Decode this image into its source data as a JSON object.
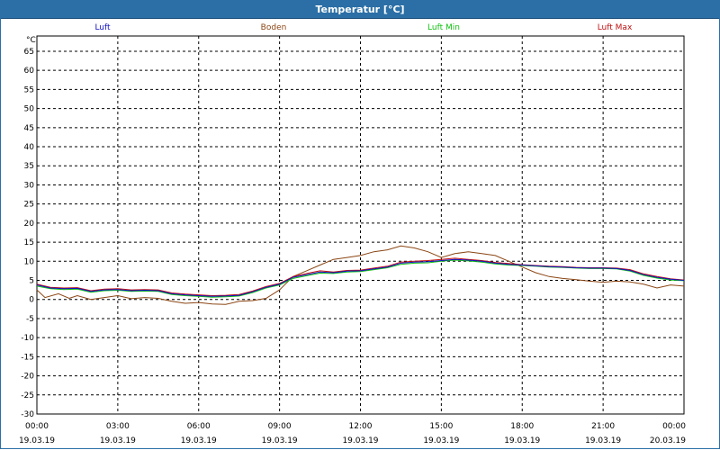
{
  "window": {
    "title": "Temperatur [°C]"
  },
  "chart_data": {
    "type": "line",
    "title": "Temperatur [°C]",
    "ylabel": "°C",
    "ylim": [
      -30,
      69
    ],
    "yticks": [
      65,
      60,
      55,
      50,
      45,
      40,
      35,
      30,
      25,
      20,
      15,
      10,
      5,
      0,
      -5,
      -10,
      -15,
      -20,
      -25,
      -30
    ],
    "xlim_hours": [
      0,
      24
    ],
    "xticks": [
      {
        "hour": 0,
        "time": "00:00",
        "date": "19.03.19"
      },
      {
        "hour": 3,
        "time": "03:00",
        "date": "19.03.19"
      },
      {
        "hour": 6,
        "time": "06:00",
        "date": "19.03.19"
      },
      {
        "hour": 9,
        "time": "09:00",
        "date": "19.03.19"
      },
      {
        "hour": 12,
        "time": "12:00",
        "date": "19.03.19"
      },
      {
        "hour": 15,
        "time": "15:00",
        "date": "19.03.19"
      },
      {
        "hour": 18,
        "time": "18:00",
        "date": "19.03.19"
      },
      {
        "hour": 21,
        "time": "21:00",
        "date": "19.03.19"
      },
      {
        "hour": 24,
        "time": "00:00",
        "date": "20.03.19"
      }
    ],
    "grid": true,
    "legend_position": "top",
    "series": [
      {
        "name": "Luft",
        "color": "#1010c0",
        "points": [
          [
            0,
            3.8
          ],
          [
            0.5,
            3.0
          ],
          [
            1,
            2.8
          ],
          [
            1.5,
            2.9
          ],
          [
            2,
            2.1
          ],
          [
            2.5,
            2.5
          ],
          [
            3,
            2.6
          ],
          [
            3.5,
            2.3
          ],
          [
            4,
            2.4
          ],
          [
            4.5,
            2.3
          ],
          [
            5,
            1.5
          ],
          [
            5.5,
            1.2
          ],
          [
            6,
            1.0
          ],
          [
            6.5,
            0.8
          ],
          [
            7,
            0.9
          ],
          [
            7.5,
            1.1
          ],
          [
            8,
            2.0
          ],
          [
            8.5,
            3.2
          ],
          [
            9,
            4.0
          ],
          [
            9.5,
            5.8
          ],
          [
            10,
            6.5
          ],
          [
            10.5,
            7.2
          ],
          [
            11,
            7.0
          ],
          [
            11.5,
            7.4
          ],
          [
            12,
            7.5
          ],
          [
            12.5,
            8.0
          ],
          [
            13,
            8.5
          ],
          [
            13.5,
            9.5
          ],
          [
            14,
            9.8
          ],
          [
            14.5,
            9.9
          ],
          [
            15,
            10.2
          ],
          [
            15.5,
            10.5
          ],
          [
            16,
            10.3
          ],
          [
            16.5,
            10.0
          ],
          [
            17,
            9.5
          ],
          [
            17.5,
            9.2
          ],
          [
            18,
            9.0
          ],
          [
            18.5,
            8.8
          ],
          [
            19,
            8.6
          ],
          [
            19.5,
            8.5
          ],
          [
            20,
            8.3
          ],
          [
            20.5,
            8.2
          ],
          [
            21,
            8.2
          ],
          [
            21.5,
            8.1
          ],
          [
            22,
            7.6
          ],
          [
            22.5,
            6.5
          ],
          [
            23,
            5.8
          ],
          [
            23.5,
            5.3
          ],
          [
            24,
            5.0
          ]
        ]
      },
      {
        "name": "Boden",
        "color": "#8b4513",
        "points": [
          [
            0,
            2.5
          ],
          [
            0.3,
            0.5
          ],
          [
            0.8,
            1.5
          ],
          [
            1.2,
            0.3
          ],
          [
            1.5,
            1.0
          ],
          [
            2,
            0.0
          ],
          [
            2.5,
            0.5
          ],
          [
            3,
            1.0
          ],
          [
            3.5,
            0.2
          ],
          [
            4,
            0.5
          ],
          [
            4.5,
            0.3
          ],
          [
            5,
            -0.5
          ],
          [
            5.5,
            -1.0
          ],
          [
            6,
            -0.8
          ],
          [
            6.5,
            -1.2
          ],
          [
            7,
            -1.3
          ],
          [
            7.5,
            -0.5
          ],
          [
            8,
            -0.3
          ],
          [
            8.5,
            0.3
          ],
          [
            9,
            2.5
          ],
          [
            9.5,
            6.0
          ],
          [
            10,
            7.5
          ],
          [
            10.5,
            9.0
          ],
          [
            11,
            10.5
          ],
          [
            11.5,
            11.0
          ],
          [
            12,
            11.5
          ],
          [
            12.5,
            12.5
          ],
          [
            13,
            13.0
          ],
          [
            13.5,
            14.0
          ],
          [
            14,
            13.5
          ],
          [
            14.5,
            12.5
          ],
          [
            15,
            11.0
          ],
          [
            15.5,
            12.0
          ],
          [
            16,
            12.5
          ],
          [
            16.5,
            12.0
          ],
          [
            17,
            11.5
          ],
          [
            17.5,
            10.0
          ],
          [
            18,
            8.5
          ],
          [
            18.5,
            7.0
          ],
          [
            19,
            6.0
          ],
          [
            19.5,
            5.5
          ],
          [
            20,
            5.2
          ],
          [
            20.5,
            4.8
          ],
          [
            21,
            4.5
          ],
          [
            21.5,
            4.8
          ],
          [
            22,
            4.6
          ],
          [
            22.5,
            4.0
          ],
          [
            23,
            3.0
          ],
          [
            23.5,
            3.8
          ],
          [
            24,
            3.5
          ]
        ]
      },
      {
        "name": "Luft Min",
        "color": "#10c010",
        "points": [
          [
            0,
            3.5
          ],
          [
            0.5,
            2.8
          ],
          [
            1,
            2.6
          ],
          [
            1.5,
            2.7
          ],
          [
            2,
            1.9
          ],
          [
            2.5,
            2.3
          ],
          [
            3,
            2.4
          ],
          [
            3.5,
            2.1
          ],
          [
            4,
            2.2
          ],
          [
            4.5,
            2.1
          ],
          [
            5,
            1.3
          ],
          [
            5.5,
            1.0
          ],
          [
            6,
            0.8
          ],
          [
            6.5,
            0.6
          ],
          [
            7,
            0.7
          ],
          [
            7.5,
            0.9
          ],
          [
            8,
            1.8
          ],
          [
            8.5,
            3.0
          ],
          [
            9,
            3.8
          ],
          [
            9.5,
            5.5
          ],
          [
            10,
            6.2
          ],
          [
            10.5,
            6.9
          ],
          [
            11,
            6.8
          ],
          [
            11.5,
            7.2
          ],
          [
            12,
            7.3
          ],
          [
            12.5,
            7.8
          ],
          [
            13,
            8.3
          ],
          [
            13.5,
            9.2
          ],
          [
            14,
            9.5
          ],
          [
            14.5,
            9.6
          ],
          [
            15,
            10.0
          ],
          [
            15.5,
            10.3
          ],
          [
            16,
            10.1
          ],
          [
            16.5,
            9.8
          ],
          [
            17,
            9.3
          ],
          [
            17.5,
            9.0
          ],
          [
            18,
            8.9
          ],
          [
            18.5,
            8.7
          ],
          [
            19,
            8.5
          ],
          [
            19.5,
            8.4
          ],
          [
            20,
            8.2
          ],
          [
            20.5,
            8.1
          ],
          [
            21,
            8.1
          ],
          [
            21.5,
            8.0
          ],
          [
            22,
            7.4
          ],
          [
            22.5,
            6.3
          ],
          [
            23,
            5.6
          ],
          [
            23.5,
            5.1
          ],
          [
            24,
            4.9
          ]
        ]
      },
      {
        "name": "Luft Max",
        "color": "#c01010",
        "points": [
          [
            0,
            4.0
          ],
          [
            0.5,
            3.2
          ],
          [
            1,
            3.0
          ],
          [
            1.5,
            3.1
          ],
          [
            2,
            2.3
          ],
          [
            2.5,
            2.7
          ],
          [
            3,
            2.8
          ],
          [
            3.5,
            2.5
          ],
          [
            4,
            2.6
          ],
          [
            4.5,
            2.5
          ],
          [
            5,
            1.7
          ],
          [
            5.5,
            1.4
          ],
          [
            6,
            1.2
          ],
          [
            6.5,
            1.0
          ],
          [
            7,
            1.1
          ],
          [
            7.5,
            1.3
          ],
          [
            8,
            2.2
          ],
          [
            8.5,
            3.4
          ],
          [
            9,
            4.2
          ],
          [
            9.5,
            6.0
          ],
          [
            10,
            6.8
          ],
          [
            10.5,
            7.5
          ],
          [
            11,
            7.2
          ],
          [
            11.5,
            7.6
          ],
          [
            12,
            7.7
          ],
          [
            12.5,
            8.2
          ],
          [
            13,
            8.7
          ],
          [
            13.5,
            9.8
          ],
          [
            14,
            10.0
          ],
          [
            14.5,
            10.2
          ],
          [
            15,
            10.5
          ],
          [
            15.5,
            10.8
          ],
          [
            16,
            10.5
          ],
          [
            16.5,
            10.2
          ],
          [
            17,
            9.7
          ],
          [
            17.5,
            9.4
          ],
          [
            18,
            9.1
          ],
          [
            18.5,
            8.9
          ],
          [
            19,
            8.7
          ],
          [
            19.5,
            8.6
          ],
          [
            20,
            8.4
          ],
          [
            20.5,
            8.3
          ],
          [
            21,
            8.3
          ],
          [
            21.5,
            8.2
          ],
          [
            22,
            7.8
          ],
          [
            22.5,
            6.7
          ],
          [
            23,
            6.0
          ],
          [
            23.5,
            5.4
          ],
          [
            24,
            5.1
          ]
        ]
      }
    ]
  }
}
